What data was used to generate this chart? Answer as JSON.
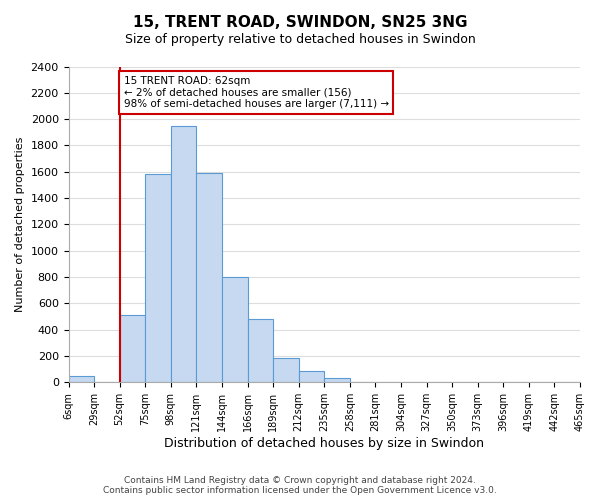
{
  "title": "15, TRENT ROAD, SWINDON, SN25 3NG",
  "subtitle": "Size of property relative to detached houses in Swindon",
  "xlabel": "Distribution of detached houses by size in Swindon",
  "ylabel": "Number of detached properties",
  "tick_labels": [
    "6sqm",
    "29sqm",
    "52sqm",
    "75sqm",
    "98sqm",
    "121sqm",
    "144sqm",
    "166sqm",
    "189sqm",
    "212sqm",
    "235sqm",
    "258sqm",
    "281sqm",
    "304sqm",
    "327sqm",
    "350sqm",
    "373sqm",
    "396sqm",
    "419sqm",
    "442sqm",
    "465sqm"
  ],
  "bar_values": [
    50,
    0,
    510,
    1580,
    1950,
    1590,
    800,
    480,
    185,
    90,
    30,
    0,
    0,
    0,
    0,
    0,
    0,
    0,
    0,
    0
  ],
  "bar_color": "#c6d9f0",
  "bar_edge_color": "#5a9bd5",
  "vline_x": 2,
  "vline_color": "#cc0000",
  "annotation_text": "15 TRENT ROAD: 62sqm\n← 2% of detached houses are smaller (156)\n98% of semi-detached houses are larger (7,111) →",
  "annotation_box_color": "#ffffff",
  "annotation_box_edge_color": "#cc0000",
  "ylim": [
    0,
    2400
  ],
  "yticks": [
    0,
    200,
    400,
    600,
    800,
    1000,
    1200,
    1400,
    1600,
    1800,
    2000,
    2200,
    2400
  ],
  "footer_line1": "Contains HM Land Registry data © Crown copyright and database right 2024.",
  "footer_line2": "Contains public sector information licensed under the Open Government Licence v3.0.",
  "bg_color": "#ffffff",
  "grid_color": "#dddddd"
}
